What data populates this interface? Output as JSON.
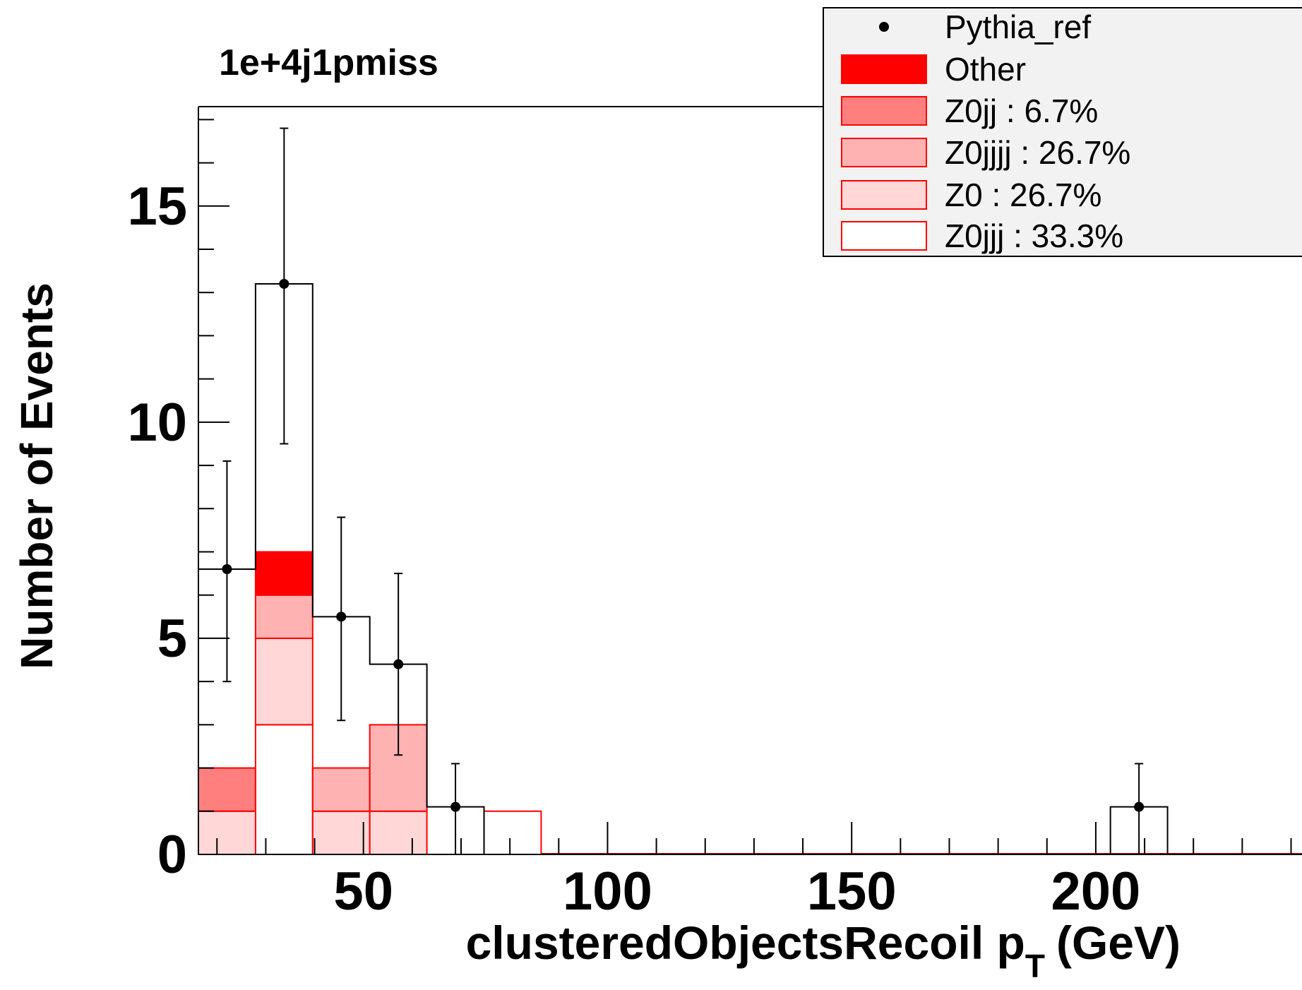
{
  "chart_data": {
    "type": "bar",
    "title": "1e+4j1pmiss",
    "xlabel": "clusteredObjectsRecoil p",
    "xlabel_sub": "T",
    "xlabel_unit": "(GeV)",
    "ylabel": "Number of Events",
    "xlim": [
      16.2,
      246.0
    ],
    "ylim": [
      0,
      17.3
    ],
    "x_ticks": [
      "50",
      "100",
      "150",
      "200"
    ],
    "y_ticks": [
      "0",
      "5",
      "10",
      "15"
    ],
    "x_tick_values": [
      50,
      100,
      150,
      200
    ],
    "y_tick_values": [
      0,
      5,
      10,
      15
    ],
    "bin_edges": [
      16.2,
      27.9,
      39.6,
      51.3,
      63.0,
      74.7,
      86.4
    ],
    "stack": [
      {
        "name": "Z0jjj : 33.3%",
        "values": [
          0,
          3,
          0,
          0,
          0,
          1
        ],
        "fill": "#ffffff",
        "stroke": "#ff0000"
      },
      {
        "name": "Z0 : 26.7%",
        "values": [
          1,
          2,
          1,
          1,
          0,
          0
        ],
        "fill": "#ffd7d7",
        "stroke": "#ff0000"
      },
      {
        "name": "Z0jjjj : 26.7%",
        "values": [
          0,
          1,
          1,
          2,
          0,
          0
        ],
        "fill": "#ffb2b2",
        "stroke": "#ff0000"
      },
      {
        "name": "Z0jj : 6.7%",
        "values": [
          1,
          0,
          0,
          0,
          0,
          0
        ],
        "fill": "#ff7f7f",
        "stroke": "#ff0000"
      },
      {
        "name": "Other",
        "values": [
          0,
          1,
          0,
          0,
          0,
          0
        ],
        "fill": "#ff0000",
        "stroke": "#ff0000"
      }
    ],
    "reference": {
      "name": "Pythia_ref",
      "bins": [
        {
          "lo": 16.2,
          "hi": 27.9,
          "y": 6.6,
          "err_lo": 4.0,
          "err_hi": 9.1
        },
        {
          "lo": 27.9,
          "hi": 39.6,
          "y": 13.2,
          "err_lo": 9.5,
          "err_hi": 16.8
        },
        {
          "lo": 39.6,
          "hi": 51.3,
          "y": 5.5,
          "err_lo": 3.1,
          "err_hi": 7.8
        },
        {
          "lo": 51.3,
          "hi": 63.0,
          "y": 4.4,
          "err_lo": 2.3,
          "err_hi": 6.5
        },
        {
          "lo": 63.0,
          "hi": 74.7,
          "y": 1.1,
          "err_lo": 0.0,
          "err_hi": 2.1
        },
        {
          "lo": 203.0,
          "hi": 214.7,
          "y": 1.1,
          "err_lo": 0.0,
          "err_hi": 2.1
        }
      ]
    },
    "legend": {
      "position": "top-right",
      "entries": [
        {
          "label": "Pythia_ref",
          "kind": "marker"
        },
        {
          "label": "Other",
          "kind": "box",
          "fill": "#ff0000"
        },
        {
          "label": "Z0jj : 6.7%",
          "kind": "box",
          "fill": "#ff7f7f"
        },
        {
          "label": "Z0jjjj : 26.7%",
          "kind": "box",
          "fill": "#ffb2b2"
        },
        {
          "label": "Z0 : 26.7%",
          "kind": "box",
          "fill": "#ffd7d7"
        },
        {
          "label": "Z0jjj : 33.3%",
          "kind": "box",
          "fill": "#ffffff"
        }
      ]
    },
    "grid": false
  }
}
